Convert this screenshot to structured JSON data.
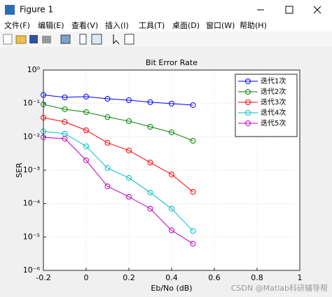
{
  "window": {
    "title": "Figure 1",
    "menu": [
      "文件(F)",
      "编辑(E)",
      "查看(V)",
      "插入(I)",
      "工具(T)",
      "桌面(D)",
      "窗口(W)",
      "帮助(H)"
    ]
  },
  "chart_data": {
    "type": "line",
    "title": "Bit Error Rate",
    "x_label": "Eb/No (dB)",
    "y_label": "SER",
    "x": [
      -0.2,
      -0.1,
      0,
      0.1,
      0.2,
      0.3,
      0.4,
      0.5
    ],
    "series": [
      {
        "name": "迭代1次",
        "color": "#0000ff",
        "values": [
          0.18,
          0.152,
          0.16,
          0.138,
          0.125,
          0.109,
          0.099,
          0.089
        ]
      },
      {
        "name": "迭代2次",
        "color": "#008000",
        "values": [
          0.094,
          0.067,
          0.055,
          0.039,
          0.0295,
          0.02,
          0.0136,
          0.0076
        ]
      },
      {
        "name": "迭代3次",
        "color": "#ff0000",
        "values": [
          0.0375,
          0.028,
          0.0157,
          0.0066,
          0.0039,
          0.0017,
          0.00075,
          0.000225
        ]
      },
      {
        "name": "迭代4次",
        "color": "#00bfbf",
        "values": [
          0.0145,
          0.0124,
          0.0052,
          0.00116,
          0.00059,
          0.000214,
          7.06e-05,
          1.51e-05
        ]
      },
      {
        "name": "迭代5次",
        "color": "#bf00bf",
        "values": [
          0.0097,
          0.0088,
          0.00198,
          0.00033,
          0.00016,
          7.06e-05,
          1.58e-05,
          6.3e-06
        ]
      }
    ],
    "xlim": [
      -0.2,
      1
    ],
    "xticks": [
      -0.2,
      0,
      0.2,
      0.4,
      0.6,
      0.8,
      1
    ],
    "ylim": [
      1e-06,
      1
    ],
    "log_y": true,
    "yticks": [
      {
        "value": 1e-06,
        "label": "10⁻⁶"
      },
      {
        "value": 1e-05,
        "label": "10⁻⁵"
      },
      {
        "value": 0.0001,
        "label": "10⁻⁴"
      },
      {
        "value": 0.001,
        "label": "10⁻³"
      },
      {
        "value": 0.01,
        "label": "10⁻²"
      },
      {
        "value": 0.1,
        "label": "10⁻¹"
      },
      {
        "value": 1,
        "label": "10⁰"
      }
    ],
    "grid": true,
    "legend": "northeast"
  },
  "watermark": "CSDN @Matlab科研辅导帮"
}
